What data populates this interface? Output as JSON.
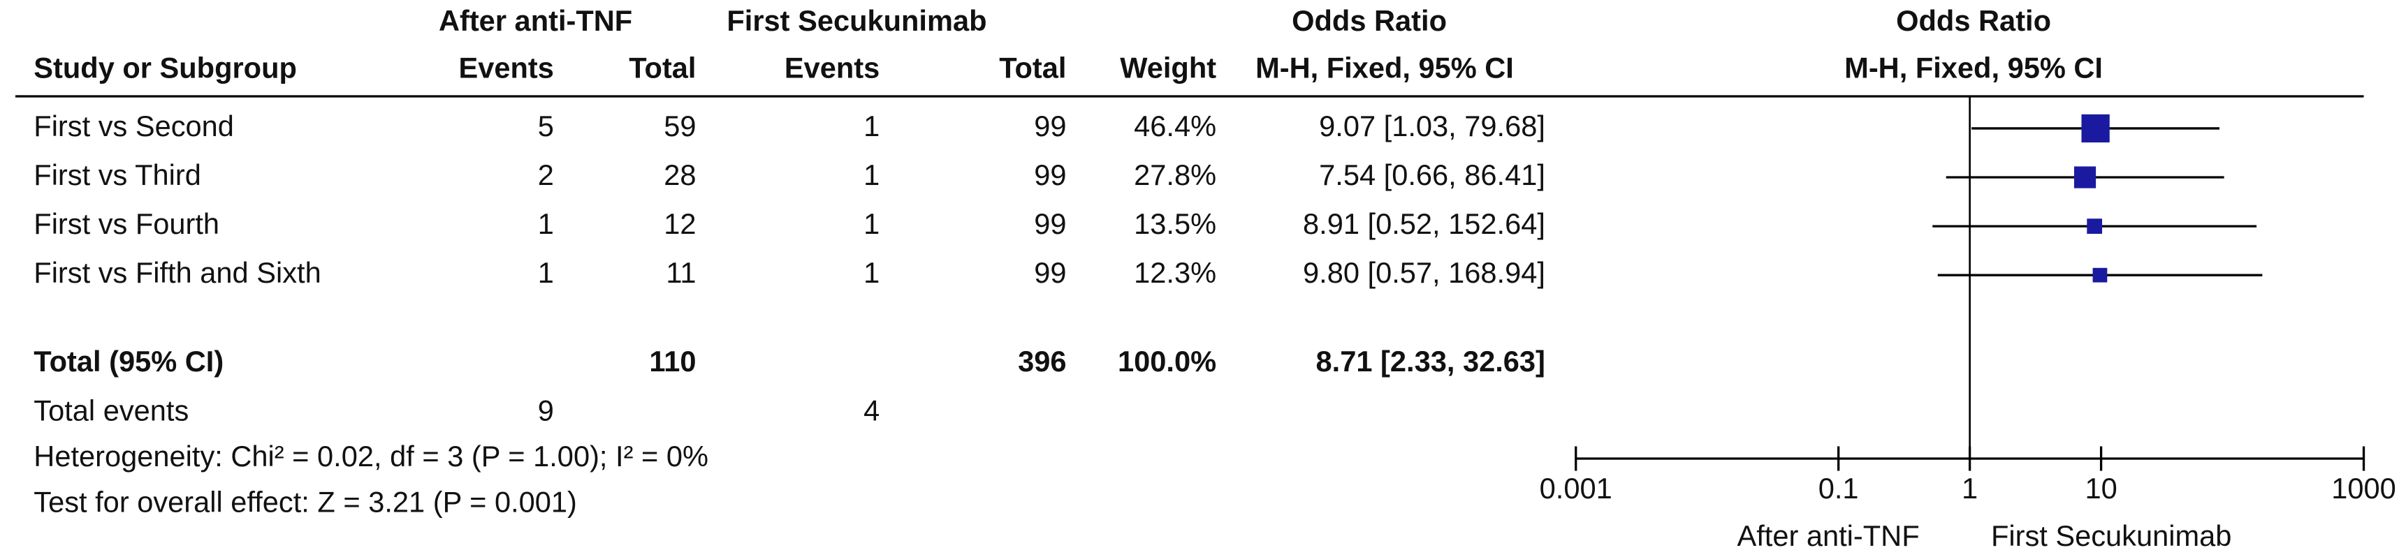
{
  "chart_data": {
    "type": "forest",
    "group1": "After anti-TNF",
    "group2": "First Secukunimab",
    "table_title": "Odds Ratio",
    "plot_title": "Odds Ratio",
    "columns": [
      "Study or Subgroup",
      "Events",
      "Total",
      "Events",
      "Total",
      "Weight",
      "M-H, Fixed, 95% CI"
    ],
    "plot_subtitle": "M-H, Fixed, 95% CI",
    "studies": [
      {
        "name": "First vs Second",
        "events1": 5,
        "total1": 59,
        "events2": 1,
        "total2": 99,
        "weight": 46.4,
        "weight_label": "46.4%",
        "or": 9.07,
        "ci_low": 1.03,
        "ci_high": 79.68,
        "ci_label": "9.07 [1.03, 79.68]"
      },
      {
        "name": "First vs Third",
        "events1": 2,
        "total1": 28,
        "events2": 1,
        "total2": 99,
        "weight": 27.8,
        "weight_label": "27.8%",
        "or": 7.54,
        "ci_low": 0.66,
        "ci_high": 86.41,
        "ci_label": "7.54 [0.66, 86.41]"
      },
      {
        "name": "First vs Fourth",
        "events1": 1,
        "total1": 12,
        "events2": 1,
        "total2": 99,
        "weight": 13.5,
        "weight_label": "13.5%",
        "or": 8.91,
        "ci_low": 0.52,
        "ci_high": 152.64,
        "ci_label": "8.91 [0.52, 152.64]"
      },
      {
        "name": "First vs Fifth and Sixth",
        "events1": 1,
        "total1": 11,
        "events2": 1,
        "total2": 99,
        "weight": 12.3,
        "weight_label": "12.3%",
        "or": 9.8,
        "ci_low": 0.57,
        "ci_high": 168.94,
        "ci_label": "9.80 [0.57, 168.94]"
      }
    ],
    "total": {
      "name": "Total (95% CI)",
      "total1": 110,
      "total2": 396,
      "weight_label": "100.0%",
      "ci_label": "8.71 [2.33, 32.63]"
    },
    "total_events": {
      "name": "Total events",
      "events1": 9,
      "events2": 4
    },
    "heterogeneity": "Heterogeneity: Chi² = 0.02, df = 3 (P = 1.00); I² = 0%",
    "overall_effect": "Test for overall effect: Z = 3.21 (P = 0.001)",
    "xlog": true,
    "xlim": [
      0.001,
      1000
    ],
    "xticks": [
      0.001,
      0.1,
      1,
      10,
      1000
    ],
    "xlabel_left": "After anti-TNF",
    "xlabel_right": "First Secukunimab",
    "color": "#1a1aa0"
  }
}
